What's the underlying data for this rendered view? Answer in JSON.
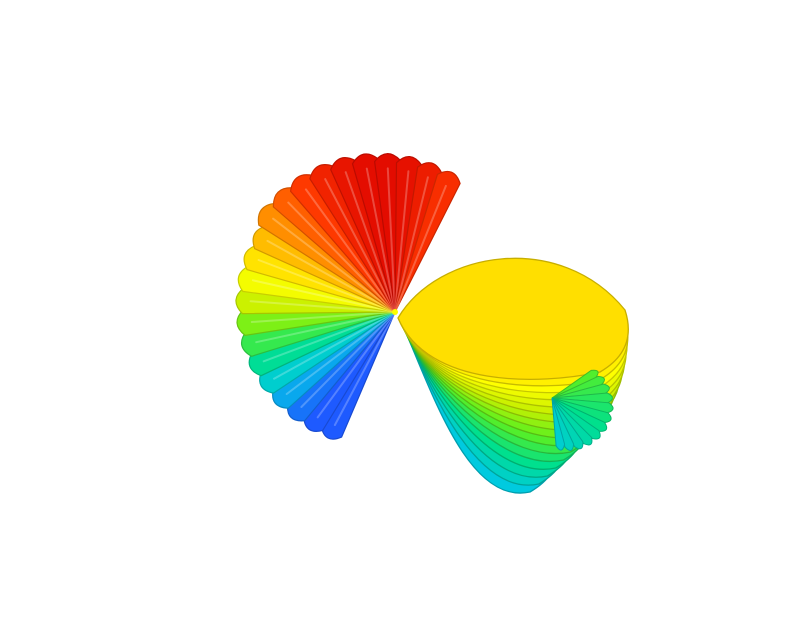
{
  "scene": {
    "subject": "surface-render",
    "background_color": "#ffffff",
    "colormap": [
      "#1e5aff",
      "#00c8e6",
      "#00e08c",
      "#5cf020",
      "#c8f000",
      "#ffff00",
      "#ffc800",
      "#ff8c00",
      "#ff3a00",
      "#dc0000"
    ],
    "lobes": [
      {
        "name": "fan-lobe",
        "ribs": 22
      },
      {
        "name": "ribbed-lobe",
        "ribs": 16
      }
    ]
  }
}
